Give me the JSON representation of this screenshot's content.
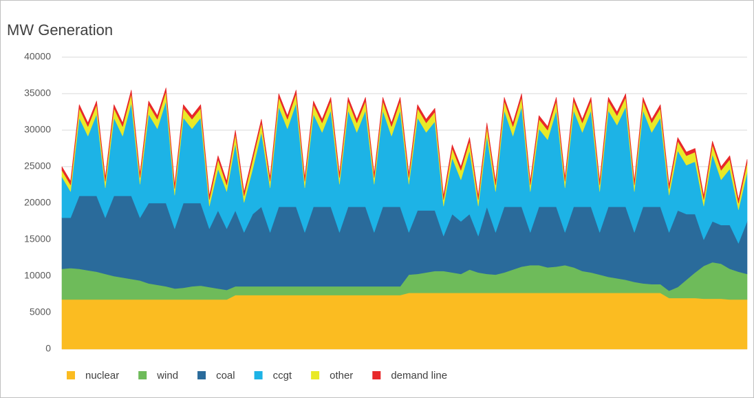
{
  "chart_data": {
    "type": "stacked_area",
    "title": "MW Generation",
    "categories": [
      null,
      null,
      null,
      null,
      null,
      null,
      null,
      null,
      null,
      null,
      null,
      null,
      null,
      null,
      null,
      null,
      null,
      null,
      null,
      null,
      null,
      null,
      null,
      null,
      null,
      null,
      null,
      null,
      null,
      null,
      null,
      null,
      null,
      null,
      null,
      null,
      null,
      null,
      null,
      null,
      null,
      null,
      null,
      null,
      null,
      null,
      null,
      null,
      null,
      null,
      null,
      null,
      null,
      null,
      null,
      null,
      null,
      null,
      null,
      null,
      null,
      null,
      null,
      null,
      null,
      null,
      null,
      null,
      null,
      null,
      null,
      null,
      null,
      null,
      null,
      null,
      null,
      null,
      null,
      null
    ],
    "ylim": [
      0,
      40000
    ],
    "yticks": [
      0,
      5000,
      10000,
      15000,
      20000,
      25000,
      30000,
      35000,
      40000
    ],
    "grid": true,
    "legend": "bottom",
    "series": [
      {
        "name": "nuclear",
        "color": "#fbbc21",
        "values": [
          6800,
          6800,
          6800,
          6800,
          6800,
          6800,
          6800,
          6800,
          6800,
          6800,
          6800,
          6800,
          6800,
          6800,
          6800,
          6800,
          6800,
          6800,
          6800,
          6800,
          7400,
          7400,
          7400,
          7400,
          7400,
          7400,
          7400,
          7400,
          7400,
          7400,
          7400,
          7400,
          7400,
          7400,
          7400,
          7400,
          7400,
          7400,
          7400,
          7400,
          7700,
          7700,
          7700,
          7700,
          7700,
          7700,
          7700,
          7700,
          7700,
          7700,
          7700,
          7700,
          7700,
          7700,
          7700,
          7700,
          7700,
          7700,
          7700,
          7700,
          7700,
          7700,
          7700,
          7700,
          7700,
          7700,
          7700,
          7700,
          7700,
          7700,
          7000,
          7000,
          7000,
          7000,
          6900,
          6900,
          6900,
          6800,
          6800,
          6800
        ]
      },
      {
        "name": "wind",
        "color": "#6ebb5a",
        "values": [
          4200,
          4300,
          4200,
          4000,
          3800,
          3500,
          3200,
          3000,
          2800,
          2600,
          2200,
          2000,
          1800,
          1500,
          1600,
          1800,
          1900,
          1700,
          1500,
          1300,
          1200,
          1200,
          1200,
          1200,
          1200,
          1200,
          1200,
          1200,
          1200,
          1200,
          1200,
          1200,
          1200,
          1200,
          1200,
          1200,
          1200,
          1200,
          1200,
          1200,
          2500,
          2600,
          2800,
          3000,
          3000,
          2800,
          2600,
          3200,
          2800,
          2600,
          2500,
          2800,
          3200,
          3600,
          3800,
          3800,
          3500,
          3600,
          3800,
          3500,
          3000,
          2800,
          2500,
          2200,
          2000,
          1800,
          1500,
          1300,
          1200,
          1200,
          1000,
          1500,
          2500,
          3500,
          4500,
          5000,
          4800,
          4200,
          3800,
          3500
        ]
      },
      {
        "name": "coal",
        "color": "#2a6b9b",
        "values": [
          7000,
          6900,
          10000,
          10200,
          10400,
          7700,
          11000,
          11200,
          11400,
          8600,
          11000,
          11200,
          11400,
          8200,
          11600,
          11400,
          11300,
          8000,
          10700,
          8400,
          10400,
          7400,
          9900,
          10900,
          7400,
          10900,
          10900,
          10900,
          7400,
          10900,
          10900,
          10900,
          7400,
          10900,
          10900,
          10900,
          7400,
          10900,
          10900,
          10900,
          5800,
          8700,
          8500,
          8300,
          4800,
          8000,
          7200,
          7600,
          5000,
          9200,
          5800,
          9000,
          8600,
          8200,
          4500,
          8000,
          8300,
          8200,
          4500,
          8300,
          8800,
          9000,
          5800,
          9600,
          9800,
          10000,
          6800,
          10500,
          10600,
          10600,
          8000,
          10500,
          9000,
          8000,
          3600,
          5600,
          5300,
          6000,
          3900,
          7200
        ]
      },
      {
        "name": "ccgt",
        "color": "#1db3e6",
        "values": [
          5600,
          3600,
          10700,
          8200,
          11200,
          4100,
          10700,
          8200,
          12700,
          4600,
          12200,
          10200,
          14000,
          4600,
          11700,
          10200,
          11700,
          3100,
          5700,
          5100,
          9200,
          4100,
          6200,
          10200,
          6100,
          13700,
          10700,
          14200,
          6100,
          12700,
          10200,
          13200,
          6600,
          13200,
          10200,
          13200,
          6600,
          13200,
          9700,
          13200,
          6600,
          12700,
          10700,
          12200,
          4100,
          7700,
          5700,
          8700,
          4100,
          9700,
          5600,
          13200,
          9700,
          13700,
          5600,
          10700,
          9200,
          13200,
          6100,
          13200,
          10200,
          13200,
          5600,
          13200,
          11200,
          13700,
          5600,
          13200,
          10200,
          12200,
          5100,
          8200,
          6700,
          7200,
          4600,
          9200,
          6200,
          7700,
          4600,
          6700
        ]
      },
      {
        "name": "other",
        "color": "#e9e927",
        "values": [
          900,
          900,
          1300,
          1300,
          1300,
          900,
          1300,
          1300,
          1300,
          900,
          1300,
          1300,
          1300,
          900,
          1300,
          1300,
          1300,
          900,
          1300,
          900,
          1300,
          900,
          1300,
          1300,
          900,
          1300,
          1300,
          1300,
          900,
          1300,
          1300,
          1300,
          900,
          1300,
          1300,
          1300,
          900,
          1300,
          1300,
          1300,
          900,
          1300,
          1300,
          1300,
          900,
          1300,
          1300,
          1300,
          900,
          1300,
          900,
          1300,
          1300,
          1300,
          900,
          1300,
          1300,
          1300,
          900,
          1300,
          1300,
          1300,
          900,
          1300,
          1300,
          1300,
          900,
          1300,
          1300,
          1300,
          900,
          1300,
          1300,
          1300,
          900,
          1300,
          1300,
          1300,
          900,
          1300
        ]
      },
      {
        "name": "demand line",
        "color": "#e8292b",
        "values": [
          500,
          500,
          500,
          500,
          500,
          500,
          500,
          500,
          500,
          500,
          500,
          500,
          500,
          500,
          500,
          500,
          500,
          500,
          500,
          500,
          500,
          500,
          500,
          500,
          500,
          500,
          500,
          500,
          500,
          500,
          500,
          500,
          500,
          500,
          500,
          500,
          500,
          500,
          500,
          500,
          500,
          500,
          500,
          500,
          500,
          500,
          500,
          500,
          500,
          500,
          500,
          500,
          500,
          500,
          500,
          500,
          500,
          500,
          500,
          500,
          500,
          500,
          500,
          500,
          500,
          500,
          500,
          500,
          500,
          500,
          500,
          500,
          500,
          500,
          500,
          500,
          500,
          500,
          500,
          500
        ]
      }
    ]
  }
}
